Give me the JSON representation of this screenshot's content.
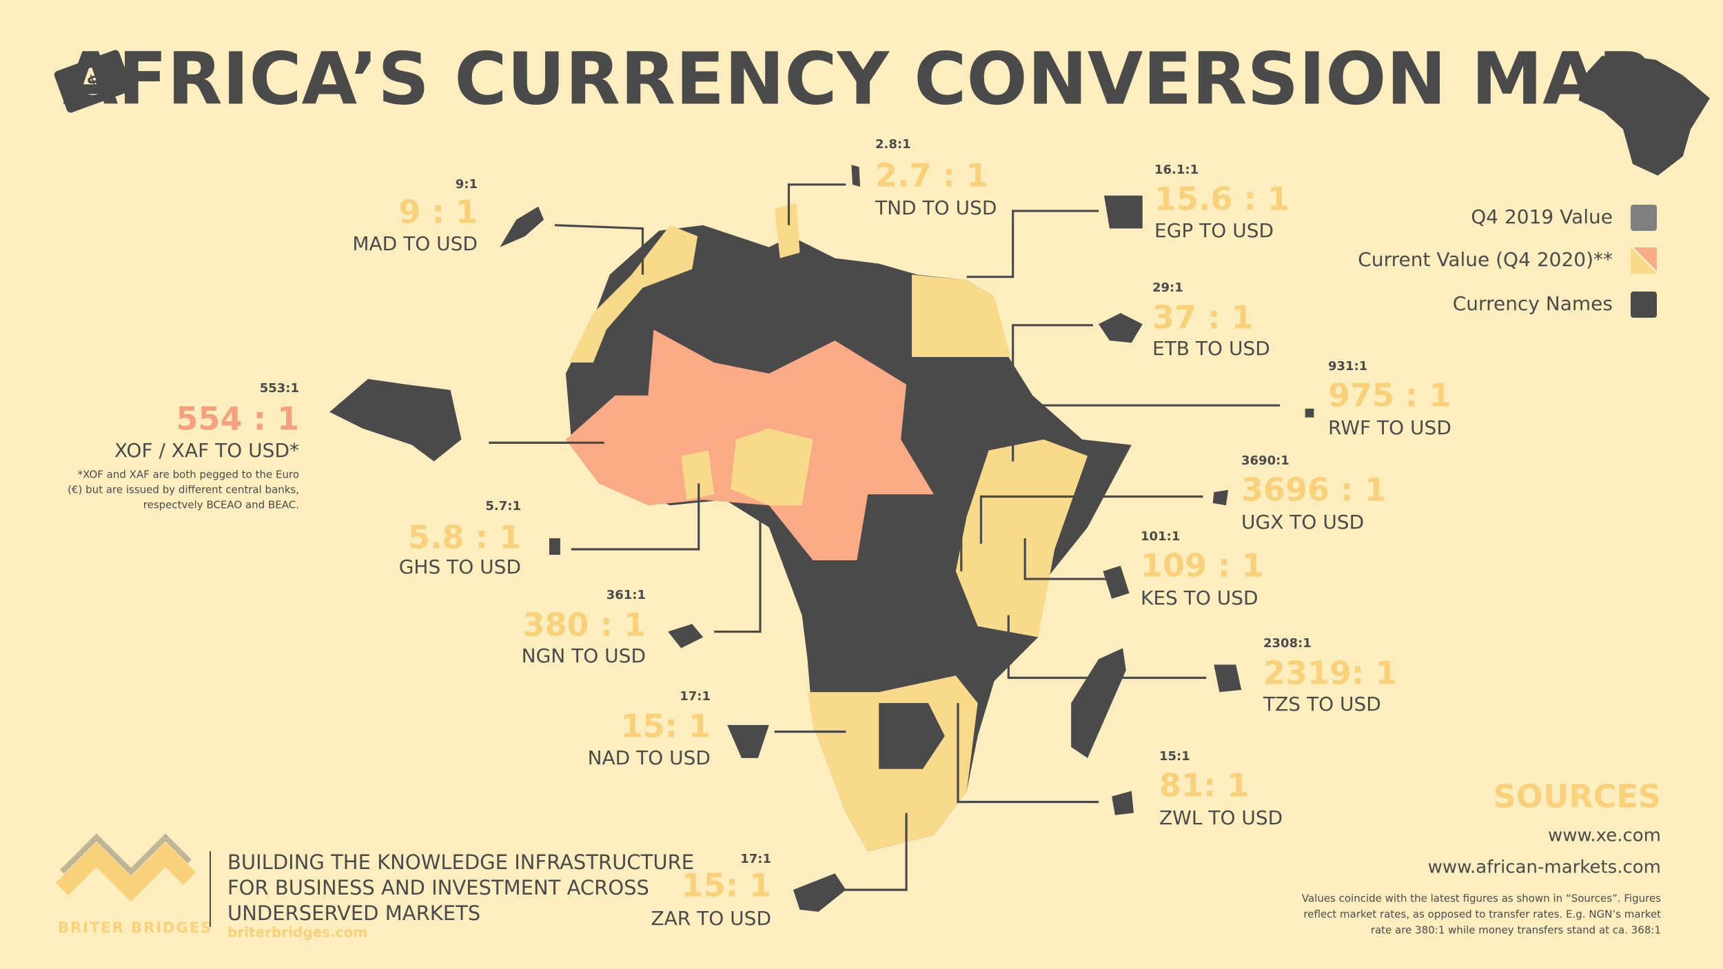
{
  "header": {
    "title": "AFRICA’S CURRENCY CONVERSION MAP"
  },
  "legend": {
    "items": [
      "Q4 2019 Value",
      "Current Value (Q4 2020)**",
      "Currency Names"
    ]
  },
  "currencies": [
    {
      "previous": "9:1",
      "current": "9 : 1",
      "name": "MAD TO USD"
    },
    {
      "previous": "2.8:1",
      "current": "2.7 : 1",
      "name": "TND TO USD"
    },
    {
      "previous": "16.1:1",
      "current": "15.6 : 1",
      "name": "EGP TO USD"
    },
    {
      "previous": "29:1",
      "current": "37 : 1",
      "name": "ETB TO USD"
    },
    {
      "previous": "553:1",
      "current": "554 : 1",
      "name": "XOF / XAF TO USD*"
    },
    {
      "previous": "931:1",
      "current": "975 : 1",
      "name": "RWF TO USD"
    },
    {
      "previous": "3690:1",
      "current": "3696 : 1",
      "name": "UGX TO USD"
    },
    {
      "previous": "5.7:1",
      "current": "5.8 : 1",
      "name": "GHS TO USD"
    },
    {
      "previous": "101:1",
      "current": "109 : 1",
      "name": "KES TO USD"
    },
    {
      "previous": "361:1",
      "current": "380 : 1",
      "name": "NGN TO USD"
    },
    {
      "previous": "2308:1",
      "current": "2319: 1",
      "name": "TZS TO USD"
    },
    {
      "previous": "17:1",
      "current": "15: 1",
      "name": "NAD TO USD"
    },
    {
      "previous": "15:1",
      "current": "81: 1",
      "name": "ZWL TO USD"
    },
    {
      "previous": "17:1",
      "current": "15: 1",
      "name": "ZAR TO USD"
    }
  ],
  "xof_note": [
    "*XOF and XAF are both pegged to the Euro",
    "(€) but are issued by different central banks,",
    "respectvely BCEAO and BEAC."
  ],
  "sources": {
    "title": "SOURCES",
    "links": [
      "www.xe.com",
      "www.african-markets.com"
    ],
    "note": [
      "Values coincide with the latest figures as shown in “Sources”. Figures",
      "reflect market rates, as opposed to transfer rates. E.g. NGN’s market",
      "rate are 380:1 while money transfers stand at ca. 368:1"
    ]
  },
  "footer": {
    "tagline": [
      "BUILDING THE KNOWLEDGE INFRASTRUCTURE",
      "FOR BUSINESS AND INVESTMENT ACROSS",
      "UNDERSERVED MARKETS"
    ],
    "brand": "BRITER BRIDGES",
    "url": "briterbridges.com"
  }
}
